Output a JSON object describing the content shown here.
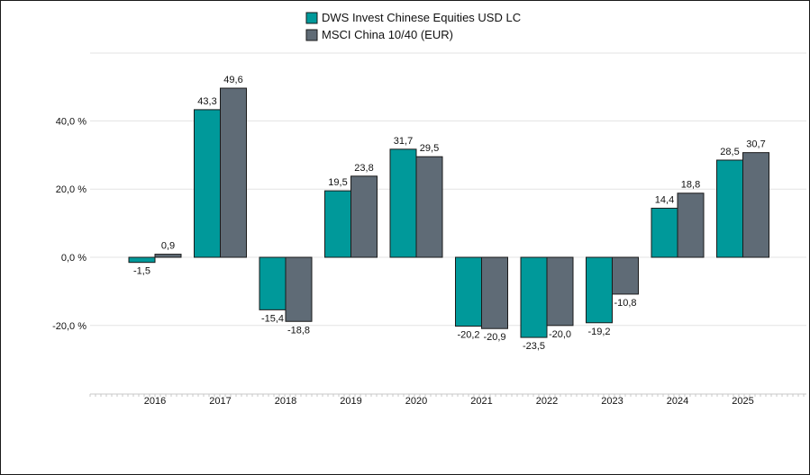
{
  "chart_data": {
    "type": "bar",
    "categories": [
      "2016",
      "2017",
      "2018",
      "2019",
      "2020",
      "2021",
      "2022",
      "2023",
      "2024",
      "2025"
    ],
    "series": [
      {
        "name": "DWS Invest Chinese Equities USD LC",
        "color": "#00999A",
        "values": [
          -1.5,
          43.3,
          -15.4,
          19.5,
          31.7,
          -20.2,
          -23.5,
          -19.2,
          14.4,
          28.5
        ],
        "labels": [
          "-1,5",
          "43,3",
          "-15,4",
          "19,5",
          "31,7",
          "-20,2",
          "-23,5",
          "-19,2",
          "14,4",
          "28,5"
        ]
      },
      {
        "name": "MSCI China 10/40 (EUR)",
        "color": "#5F6B76",
        "values": [
          0.9,
          49.6,
          -18.8,
          23.8,
          29.5,
          -20.9,
          -20.0,
          -10.8,
          18.8,
          30.7
        ],
        "labels": [
          "0,9",
          "49,6",
          "-18,8",
          "23,8",
          "29,5",
          "-20,9",
          "-20,0",
          "-10,8",
          "18,8",
          "30,7"
        ]
      }
    ],
    "yticks": [
      {
        "value": 40,
        "label": "40,0 %"
      },
      {
        "value": 20,
        "label": "20,0 %"
      },
      {
        "value": 0,
        "label": "0,0 %"
      },
      {
        "value": -20,
        "label": "-20,0 %"
      }
    ],
    "ylim": [
      -40,
      60
    ],
    "title": "",
    "xlabel": "",
    "ylabel": "",
    "grid": true,
    "legend_position": "top-center"
  }
}
